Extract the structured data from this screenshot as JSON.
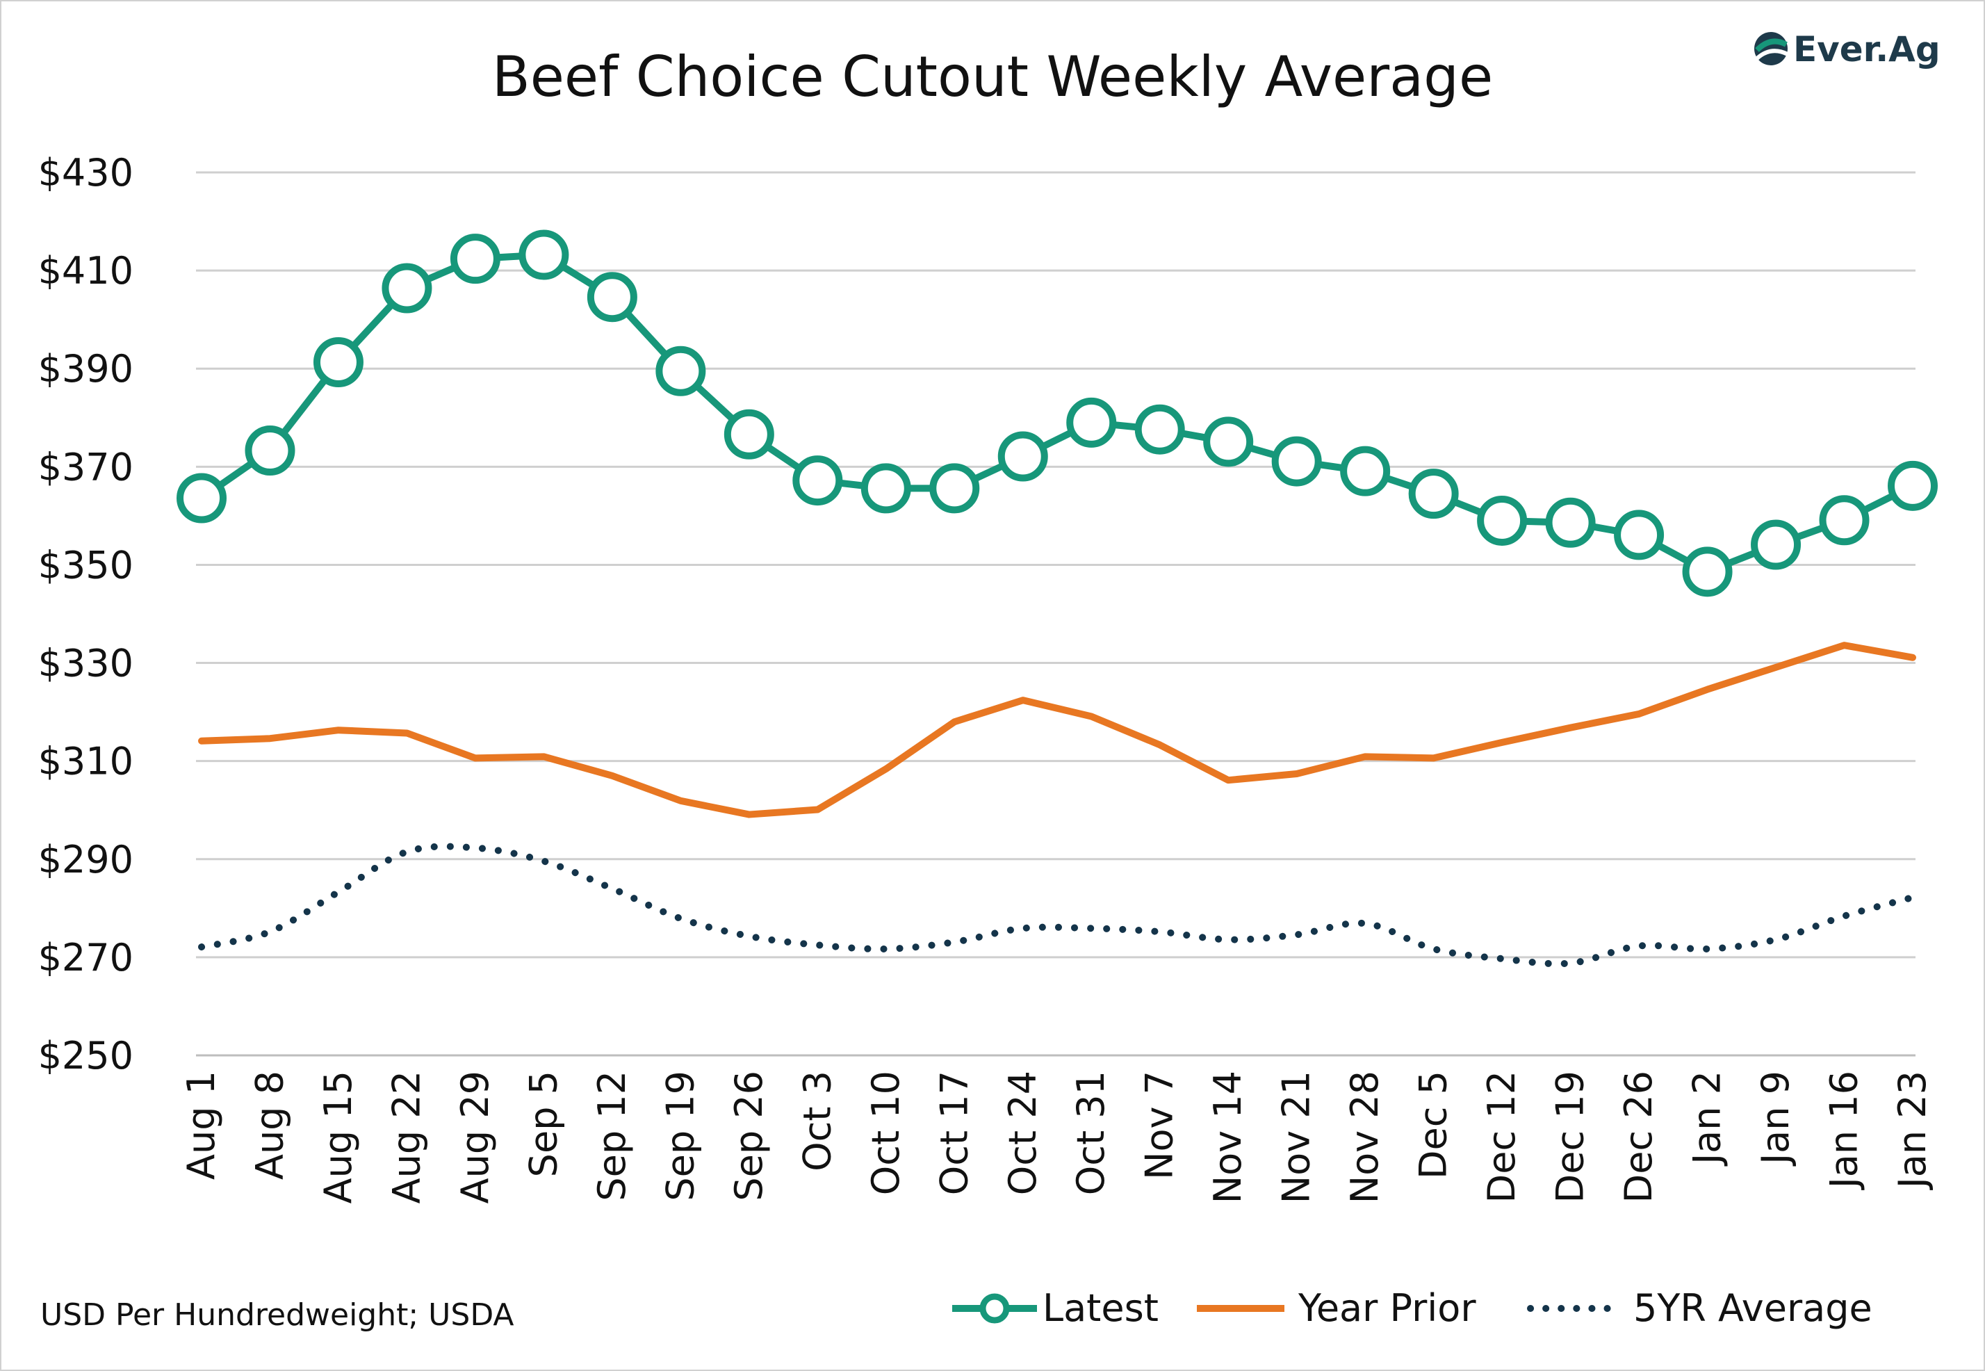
{
  "chart_data": {
    "type": "line",
    "title": "Beef Choice Cutout Weekly Average",
    "xlabel": "",
    "ylabel": "",
    "ylim": [
      250,
      430
    ],
    "y_ticks": [
      250,
      270,
      290,
      310,
      330,
      350,
      370,
      390,
      410,
      430
    ],
    "y_tick_labels": [
      "$250",
      "$270",
      "$290",
      "$310",
      "$330",
      "$350",
      "$370",
      "$390",
      "$410",
      "$430"
    ],
    "grid": true,
    "legend_position": "bottom-right",
    "categories": [
      "Aug 1",
      "Aug 8",
      "Aug 15",
      "Aug 22",
      "Aug 29",
      "Sep 5",
      "Sep 12",
      "Sep 19",
      "Sep 26",
      "Oct 3",
      "Oct 10",
      "Oct 17",
      "Oct 24",
      "Oct 31",
      "Nov 7",
      "Nov 14",
      "Nov 21",
      "Nov 28",
      "Dec 5",
      "Dec 12",
      "Dec 19",
      "Dec 26",
      "Jan 2",
      "Jan 9",
      "Jan 16",
      "Jan 23"
    ],
    "series": [
      {
        "name": "Latest",
        "color": "#17977a",
        "style": "line-markers",
        "values": [
          363.6,
          373.3,
          391.3,
          406.4,
          412.4,
          413.2,
          404.6,
          389.5,
          376.6,
          367.2,
          365.6,
          365.6,
          372.1,
          379.0,
          377.6,
          375.1,
          371.1,
          369.1,
          364.5,
          359.0,
          358.6,
          356.1,
          348.6,
          354.1,
          359.1,
          366.1
        ]
      },
      {
        "name": "Year Prior",
        "color": "#e87722",
        "style": "line",
        "values": [
          314.1,
          314.6,
          316.3,
          315.7,
          310.6,
          310.9,
          307.0,
          301.9,
          299.1,
          300.1,
          308.4,
          318.0,
          322.4,
          319.1,
          313.3,
          306.1,
          307.4,
          310.9,
          310.6,
          313.8,
          316.8,
          319.6,
          324.6,
          329.1,
          333.6,
          331.1
        ]
      },
      {
        "name": "5YR Average",
        "color": "#14344a",
        "style": "dotted",
        "values": [
          272.1,
          275.2,
          283.3,
          291.5,
          292.3,
          289.6,
          284.0,
          277.9,
          274.3,
          272.5,
          271.7,
          273.1,
          275.9,
          275.9,
          275.2,
          273.6,
          274.6,
          276.9,
          271.7,
          269.7,
          268.8,
          272.3,
          271.7,
          273.6,
          278.4,
          282.2
        ]
      }
    ],
    "source_note": "USD Per Hundredweight; USDA",
    "brand": "Ever.Ag"
  }
}
